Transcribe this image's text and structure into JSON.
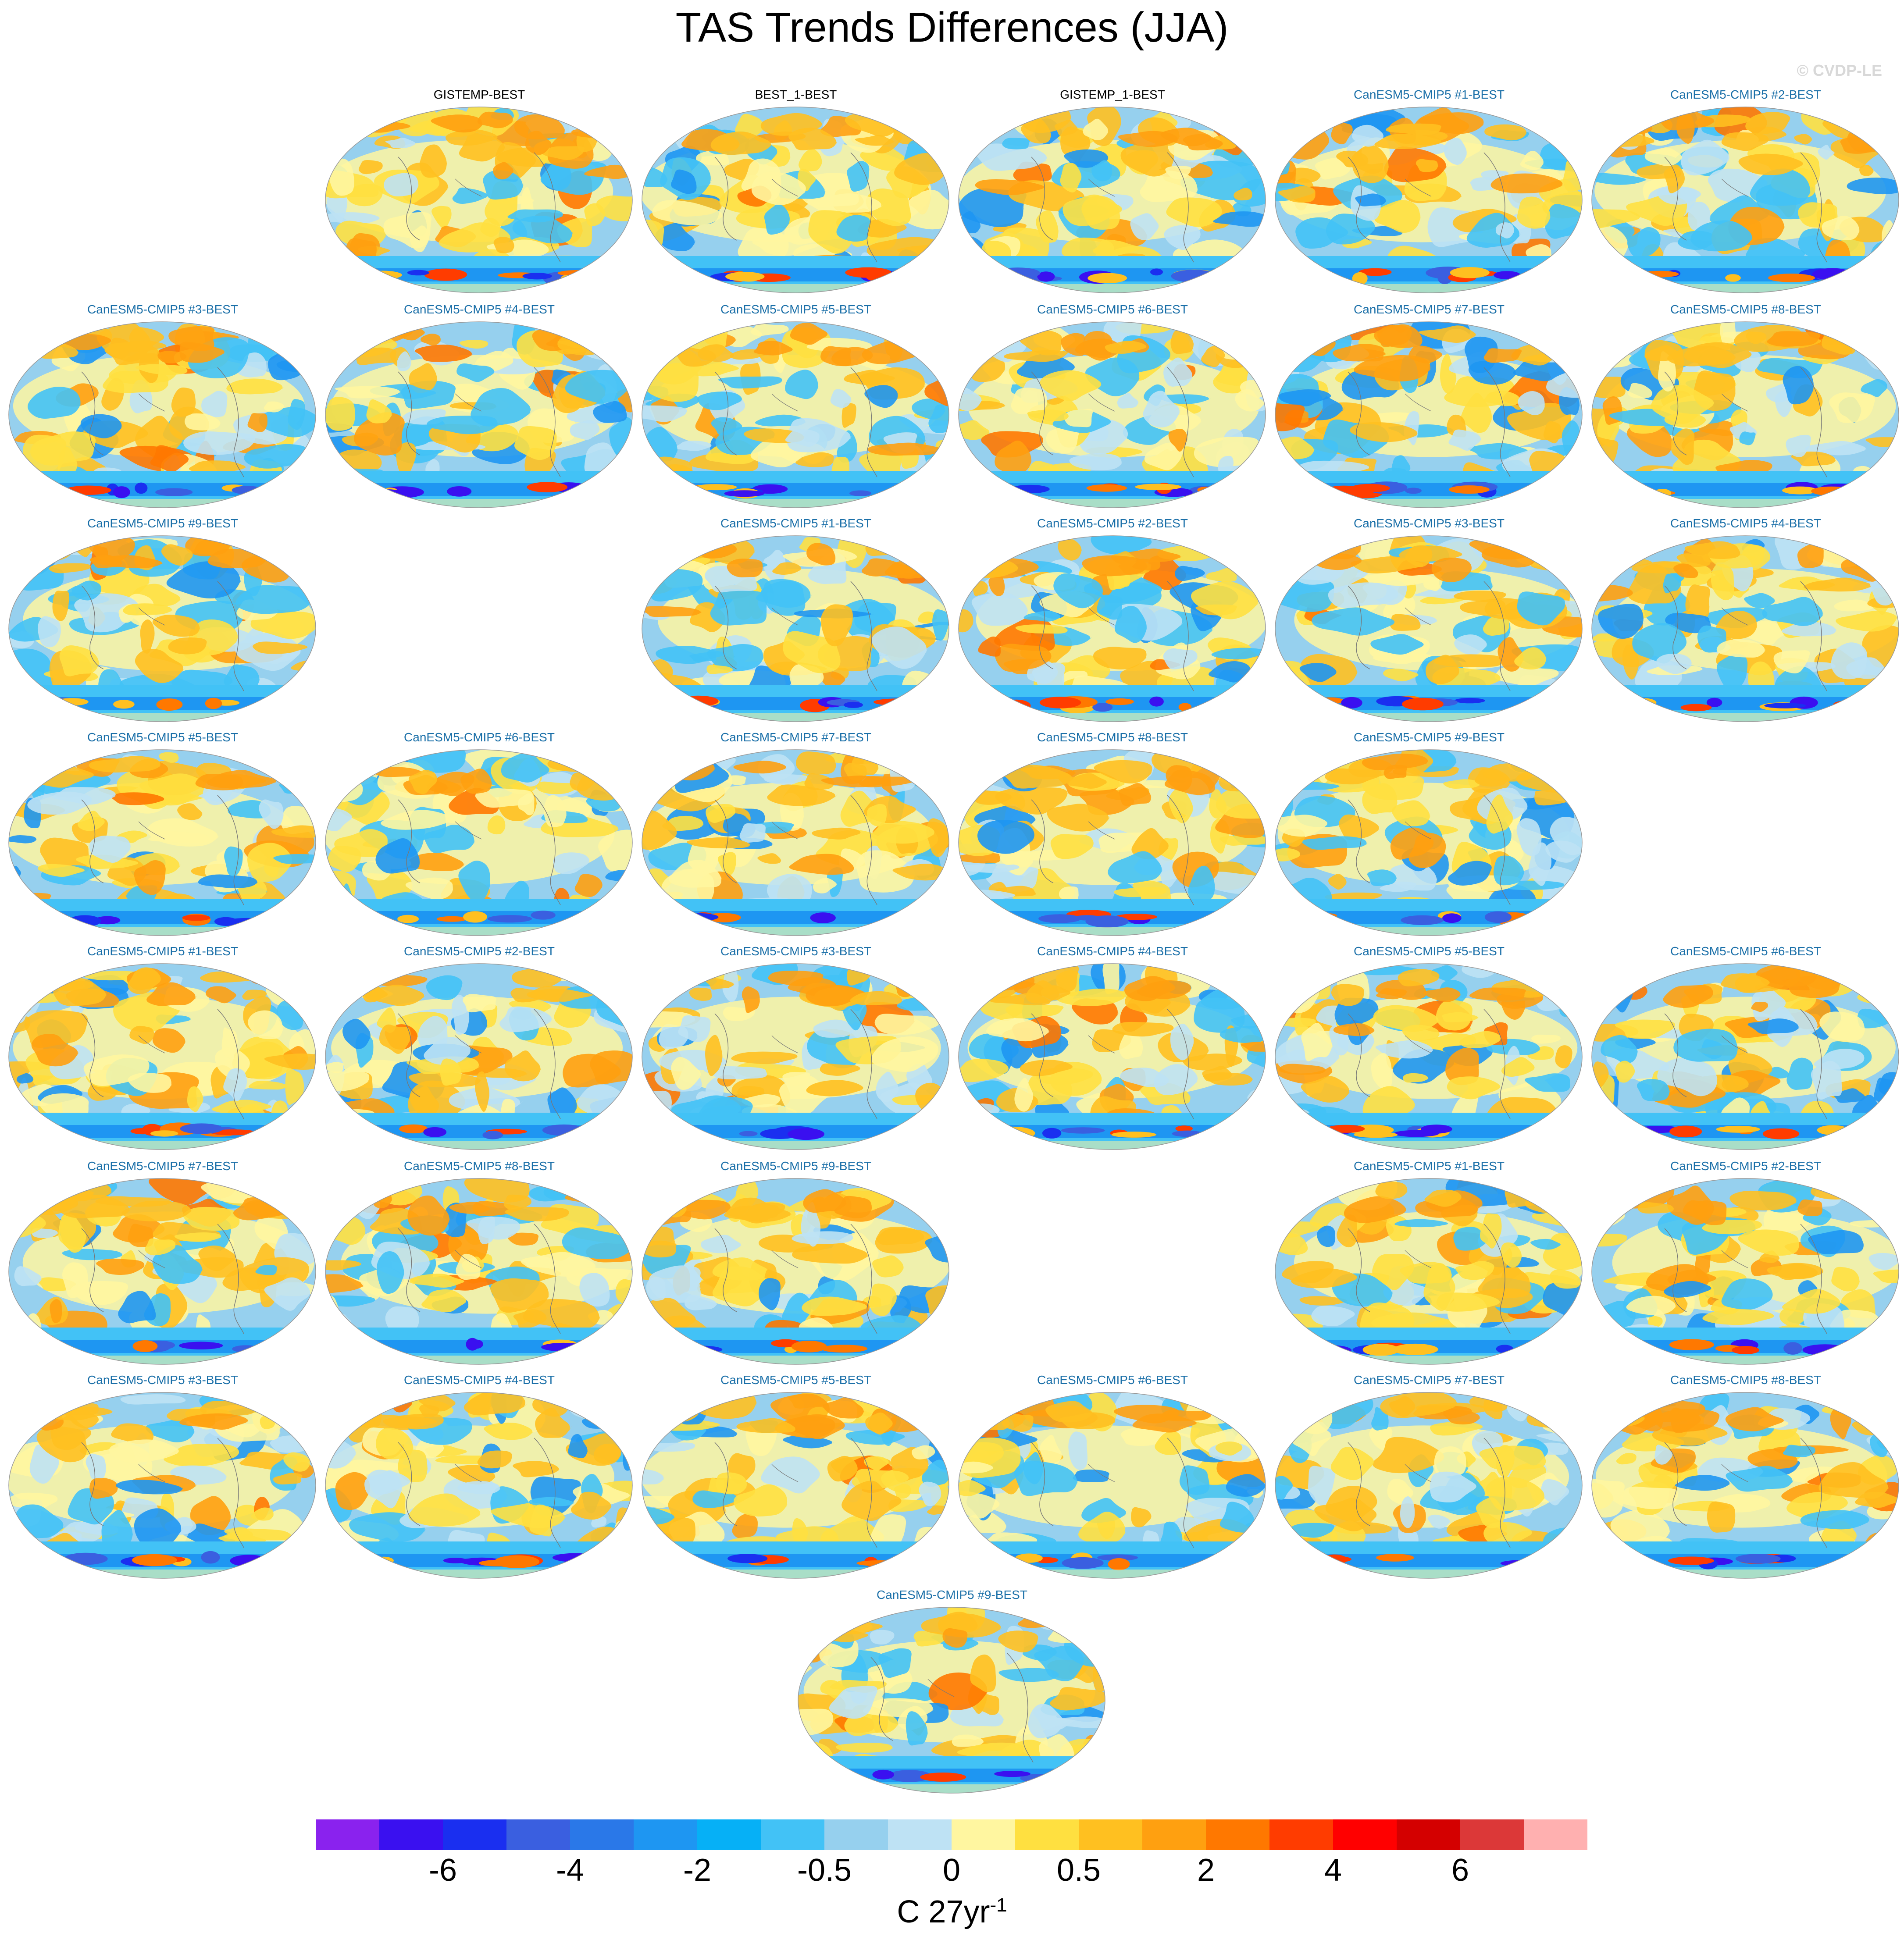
{
  "title": "TAS Trends Differences (JJA)",
  "credit": "© CVDP-LE",
  "panels": [
    {
      "label": "GISTEMP-BEST",
      "kind": "obs"
    },
    {
      "label": "BEST_1-BEST",
      "kind": "obs"
    },
    {
      "label": "GISTEMP_1-BEST",
      "kind": "obs"
    },
    {
      "label": "CanESM5-CMIP5 #1-BEST",
      "kind": "model"
    },
    {
      "label": "CanESM5-CMIP5 #2-BEST",
      "kind": "model"
    },
    {
      "label": "CanESM5-CMIP5 #3-BEST",
      "kind": "model"
    },
    {
      "label": "CanESM5-CMIP5 #4-BEST",
      "kind": "model"
    },
    {
      "label": "CanESM5-CMIP5 #5-BEST",
      "kind": "model"
    },
    {
      "label": "CanESM5-CMIP5 #6-BEST",
      "kind": "model"
    },
    {
      "label": "CanESM5-CMIP5 #7-BEST",
      "kind": "model"
    },
    {
      "label": "CanESM5-CMIP5 #8-BEST",
      "kind": "model"
    },
    {
      "label": "CanESM5-CMIP5 #9-BEST",
      "kind": "model"
    },
    {
      "label": "CanESM5-CMIP5 #1-BEST",
      "kind": "model"
    },
    {
      "label": "CanESM5-CMIP5 #2-BEST",
      "kind": "model"
    },
    {
      "label": "CanESM5-CMIP5 #3-BEST",
      "kind": "model"
    },
    {
      "label": "CanESM5-CMIP5 #4-BEST",
      "kind": "model"
    },
    {
      "label": "CanESM5-CMIP5 #5-BEST",
      "kind": "model"
    },
    {
      "label": "CanESM5-CMIP5 #6-BEST",
      "kind": "model"
    },
    {
      "label": "CanESM5-CMIP5 #7-BEST",
      "kind": "model"
    },
    {
      "label": "CanESM5-CMIP5 #8-BEST",
      "kind": "model"
    },
    {
      "label": "CanESM5-CMIP5 #9-BEST",
      "kind": "model"
    },
    {
      "label": "CanESM5-CMIP5 #1-BEST",
      "kind": "model"
    },
    {
      "label": "CanESM5-CMIP5 #2-BEST",
      "kind": "model"
    },
    {
      "label": "CanESM5-CMIP5 #3-BEST",
      "kind": "model"
    },
    {
      "label": "CanESM5-CMIP5 #4-BEST",
      "kind": "model"
    },
    {
      "label": "CanESM5-CMIP5 #5-BEST",
      "kind": "model"
    },
    {
      "label": "CanESM5-CMIP5 #6-BEST",
      "kind": "model"
    },
    {
      "label": "CanESM5-CMIP5 #7-BEST",
      "kind": "model"
    },
    {
      "label": "CanESM5-CMIP5 #8-BEST",
      "kind": "model"
    },
    {
      "label": "CanESM5-CMIP5 #9-BEST",
      "kind": "model"
    },
    {
      "label": "CanESM5-CMIP5 #1-BEST",
      "kind": "model"
    },
    {
      "label": "CanESM5-CMIP5 #2-BEST",
      "kind": "model"
    },
    {
      "label": "CanESM5-CMIP5 #3-BEST",
      "kind": "model"
    },
    {
      "label": "CanESM5-CMIP5 #4-BEST",
      "kind": "model"
    },
    {
      "label": "CanESM5-CMIP5 #5-BEST",
      "kind": "model"
    },
    {
      "label": "CanESM5-CMIP5 #6-BEST",
      "kind": "model"
    },
    {
      "label": "CanESM5-CMIP5 #7-BEST",
      "kind": "model"
    },
    {
      "label": "CanESM5-CMIP5 #8-BEST",
      "kind": "model"
    },
    {
      "label": "CanESM5-CMIP5 #9-BEST",
      "kind": "model"
    }
  ],
  "colorbar": {
    "colors": [
      "#8a22ee",
      "#3a10f0",
      "#1a2ff0",
      "#3a5fe0",
      "#2a78e8",
      "#1e96f2",
      "#06b0f6",
      "#42c2f6",
      "#96d0ee",
      "#bee2f4",
      "#fff6a0",
      "#ffe040",
      "#ffc020",
      "#ffa010",
      "#ff7800",
      "#ff3c00",
      "#ff0000",
      "#d40000",
      "#dc3838",
      "#ffb0b0"
    ],
    "labels": [
      "-6",
      "-4",
      "-2",
      "-0.5",
      "0",
      "0.5",
      "2",
      "4",
      "6"
    ],
    "units_main": "C 27yr",
    "units_sup": "-1"
  }
}
